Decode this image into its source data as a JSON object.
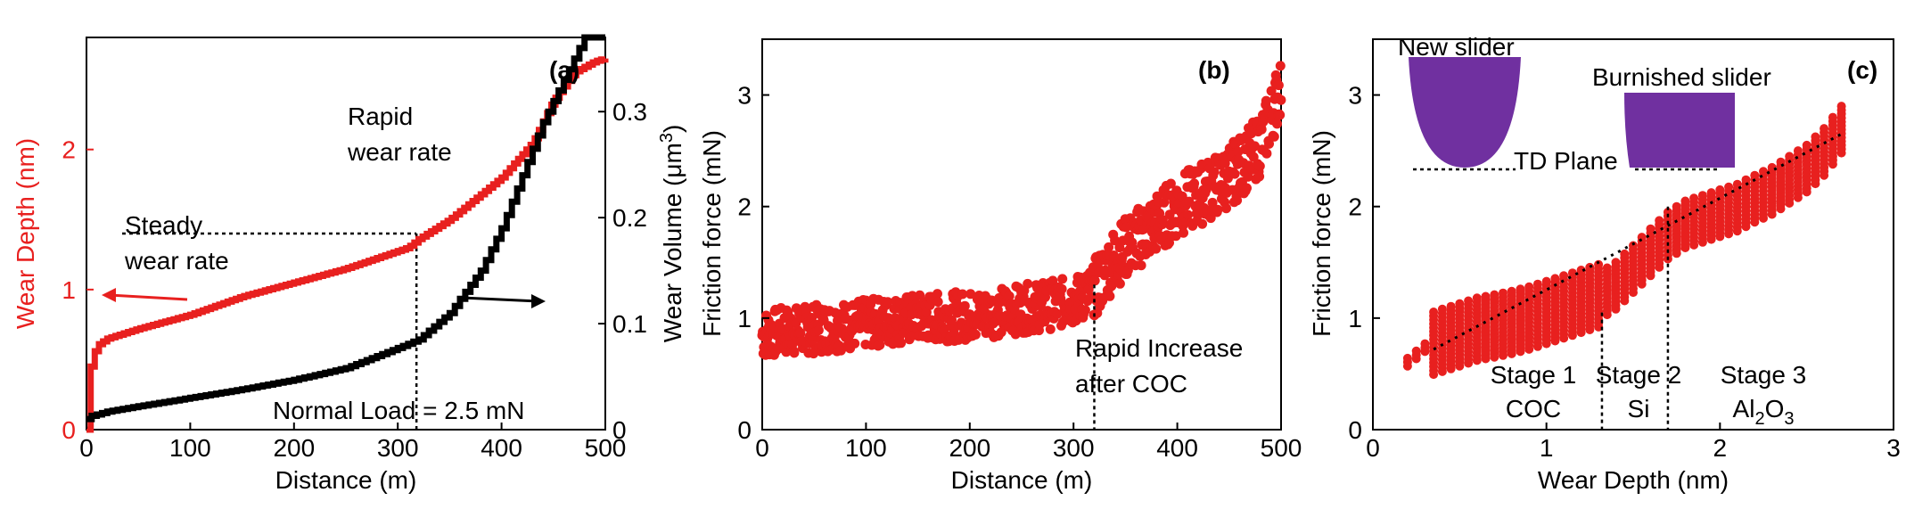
{
  "chart_data": [
    {
      "panel": "(a)",
      "type": "line",
      "xlabel": "Distance (m)",
      "ylabel": "Wear Depth (nm)",
      "y2label": "Wear Volume (μm³)",
      "xlim": [
        0,
        500
      ],
      "ylim": [
        0,
        2.8
      ],
      "y2lim": [
        0,
        0.37
      ],
      "xticks": [
        "0",
        "100",
        "200",
        "300",
        "400",
        "500"
      ],
      "yticks": [
        "0",
        "1",
        "2"
      ],
      "y2ticks": [
        "0",
        "0.1",
        "0.2",
        "0.3"
      ],
      "series": [
        {
          "axis": "left",
          "color": "#e8201f",
          "x": [
            0,
            2,
            5,
            10,
            20,
            50,
            100,
            150,
            200,
            250,
            290,
            310,
            320,
            350,
            400,
            430,
            450,
            470,
            490,
            500
          ],
          "y": [
            0,
            0.35,
            0.5,
            0.6,
            0.65,
            0.72,
            0.82,
            0.95,
            1.05,
            1.15,
            1.25,
            1.3,
            1.36,
            1.5,
            1.8,
            2.05,
            2.35,
            2.55,
            2.63,
            2.65
          ]
        },
        {
          "axis": "right",
          "color": "#000000",
          "x": [
            0,
            5,
            20,
            50,
            100,
            150,
            200,
            250,
            300,
            320,
            350,
            380,
            400,
            420,
            440,
            460,
            470,
            480,
            500
          ],
          "y": [
            0.01,
            0.013,
            0.017,
            0.022,
            0.03,
            0.038,
            0.047,
            0.058,
            0.077,
            0.085,
            0.11,
            0.15,
            0.19,
            0.24,
            0.29,
            0.33,
            0.35,
            0.37,
            0.37
          ]
        }
      ],
      "annotations": {
        "steady": [
          "Steady",
          "wear rate"
        ],
        "rapid": [
          "Rapid",
          "wear rate"
        ],
        "load": "Normal Load = 2.5 mN",
        "dashed_y": 1.4,
        "dashed_x": 318
      }
    },
    {
      "panel": "(b)",
      "type": "scatter",
      "xlabel": "Distance (m)",
      "ylabel": "Friction force (mN)",
      "xlim": [
        0,
        500
      ],
      "ylim": [
        0,
        3.5
      ],
      "xticks": [
        "0",
        "100",
        "200",
        "300",
        "400",
        "500"
      ],
      "yticks": [
        "0",
        "1",
        "2",
        "3"
      ],
      "series": [
        {
          "color": "#e8201f",
          "x": [
            0,
            20,
            50,
            100,
            150,
            200,
            250,
            300,
            320,
            340,
            360,
            380,
            400,
            420,
            440,
            460,
            480,
            490,
            500
          ],
          "y": [
            0.85,
            0.88,
            0.9,
            0.95,
            1.0,
            1.02,
            1.08,
            1.15,
            1.25,
            1.55,
            1.7,
            1.85,
            2.0,
            2.1,
            2.2,
            2.35,
            2.55,
            2.8,
            3.1
          ]
        }
      ],
      "annotations": {
        "text": [
          "Rapid Increase",
          "after COC"
        ],
        "dashed_x": 320
      }
    },
    {
      "panel": "(c)",
      "type": "scatter",
      "xlabel": "Wear Depth (nm)",
      "ylabel": "Friction force (mN)",
      "xlim": [
        0,
        3
      ],
      "ylim": [
        0,
        3.5
      ],
      "xticks": [
        "0",
        "1",
        "2",
        "3"
      ],
      "yticks": [
        "0",
        "1",
        "2",
        "3"
      ],
      "series": [
        {
          "color": "#e8201f",
          "x": [
            0.2,
            0.3,
            0.4,
            0.5,
            0.6,
            0.7,
            0.8,
            0.9,
            1.0,
            1.1,
            1.2,
            1.3,
            1.4,
            1.5,
            1.6,
            1.7,
            1.8,
            1.9,
            2.0,
            2.1,
            2.2,
            2.3,
            2.4,
            2.5,
            2.6,
            2.7
          ],
          "y": [
            0.62,
            0.75,
            0.8,
            0.85,
            0.9,
            0.93,
            0.96,
            1.0,
            1.05,
            1.1,
            1.15,
            1.2,
            1.3,
            1.45,
            1.6,
            1.75,
            1.85,
            1.9,
            1.95,
            2.0,
            2.08,
            2.15,
            2.25,
            2.35,
            2.5,
            2.7
          ]
        }
      ],
      "fit_line": [
        [
          0.35,
          0.72
        ],
        [
          2.7,
          2.65
        ]
      ],
      "stage_boundaries": [
        1.32,
        1.7
      ],
      "stages": [
        {
          "name": "Stage 1",
          "material": "COC"
        },
        {
          "name": "Stage 2",
          "material": "Si"
        },
        {
          "name": "Stage 3",
          "material": "Al",
          "sub": "2",
          "material_tail": "O",
          "sub2": "3"
        }
      ],
      "insets": {
        "new": "New slider",
        "burnished": "Burnished slider",
        "plane": "TD Plane",
        "color": "#7030a0"
      }
    }
  ]
}
